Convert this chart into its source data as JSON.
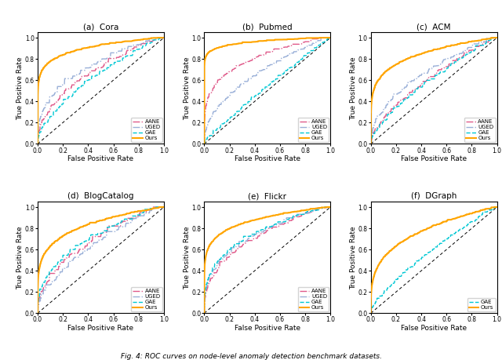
{
  "subplots": [
    {
      "title": "(a)  Cora",
      "dataset": "Cora"
    },
    {
      "title": "(b)  Pubmed",
      "dataset": "Pubmed"
    },
    {
      "title": "(c)  ACM",
      "dataset": "ACM"
    },
    {
      "title": "(d)  BlogCatalog",
      "dataset": "BlogCatalog"
    },
    {
      "title": "(e)  Flickr",
      "dataset": "Flickr"
    },
    {
      "title": "(f)  DGraph",
      "dataset": "DGraph"
    }
  ],
  "methods": [
    "AANE",
    "UGED",
    "GAE",
    "Ours"
  ],
  "colors": {
    "AANE": "#e05a8a",
    "UGED": "#9ab0d8",
    "GAE": "#00c8d4",
    "Ours": "#ffa500"
  },
  "linestyles": {
    "AANE": "-.",
    "UGED": "-.",
    "GAE": "--",
    "Ours": "-"
  },
  "linewidths": {
    "AANE": 1.0,
    "UGED": 1.0,
    "GAE": 1.0,
    "Ours": 1.5
  },
  "xlabel": "False Positive Rate",
  "ylabel": "True Positive Rate",
  "fig_caption": "Fig. 4: ROC curves on node-level anomaly detection benchmark datasets.",
  "dataset_methods": {
    "Cora": [
      "AANE",
      "UGED",
      "GAE",
      "Ours"
    ],
    "Pubmed": [
      "AANE",
      "UGED",
      "GAE",
      "Ours"
    ],
    "ACM": [
      "AANE",
      "UGED",
      "GAE",
      "Ours"
    ],
    "BlogCatalog": [
      "AANE",
      "UGED",
      "GAE",
      "Ours"
    ],
    "Flickr": [
      "AANE",
      "UGED",
      "GAE",
      "Ours"
    ],
    "DGraph": [
      "GAE",
      "Ours"
    ]
  },
  "roc_shapes": {
    "Cora": {
      "AANE": {
        "power": 2.0,
        "noise": 0.018,
        "seed": 1
      },
      "UGED": {
        "power": 2.6,
        "noise": 0.015,
        "seed": 2
      },
      "GAE": {
        "power": 1.6,
        "noise": 0.018,
        "seed": 3
      },
      "Ours": {
        "power": 9.0,
        "noise": 0.004,
        "seed": 4
      }
    },
    "Pubmed": {
      "AANE": {
        "power": 4.0,
        "noise": 0.012,
        "seed": 10
      },
      "UGED": {
        "power": 2.0,
        "noise": 0.015,
        "seed": 11
      },
      "GAE": {
        "power": 1.1,
        "noise": 0.012,
        "seed": 12
      },
      "Ours": {
        "power": 22.0,
        "noise": 0.003,
        "seed": 13
      }
    },
    "ACM": {
      "AANE": {
        "power": 1.5,
        "noise": 0.018,
        "seed": 20
      },
      "UGED": {
        "power": 2.0,
        "noise": 0.015,
        "seed": 21
      },
      "GAE": {
        "power": 1.4,
        "noise": 0.015,
        "seed": 22
      },
      "Ours": {
        "power": 5.5,
        "noise": 0.004,
        "seed": 23
      }
    },
    "BlogCatalog": {
      "AANE": {
        "power": 2.0,
        "noise": 0.022,
        "seed": 30
      },
      "UGED": {
        "power": 1.7,
        "noise": 0.022,
        "seed": 31
      },
      "GAE": {
        "power": 2.3,
        "noise": 0.018,
        "seed": 32
      },
      "Ours": {
        "power": 5.0,
        "noise": 0.004,
        "seed": 33
      }
    },
    "Flickr": {
      "AANE": {
        "power": 2.5,
        "noise": 0.015,
        "seed": 40
      },
      "UGED": {
        "power": 2.8,
        "noise": 0.015,
        "seed": 41
      },
      "GAE": {
        "power": 3.0,
        "noise": 0.012,
        "seed": 42
      },
      "Ours": {
        "power": 7.0,
        "noise": 0.003,
        "seed": 43
      }
    },
    "DGraph": {
      "GAE": {
        "power": 1.35,
        "noise": 0.012,
        "seed": 52
      },
      "Ours": {
        "power": 3.5,
        "noise": 0.004,
        "seed": 53
      }
    }
  }
}
